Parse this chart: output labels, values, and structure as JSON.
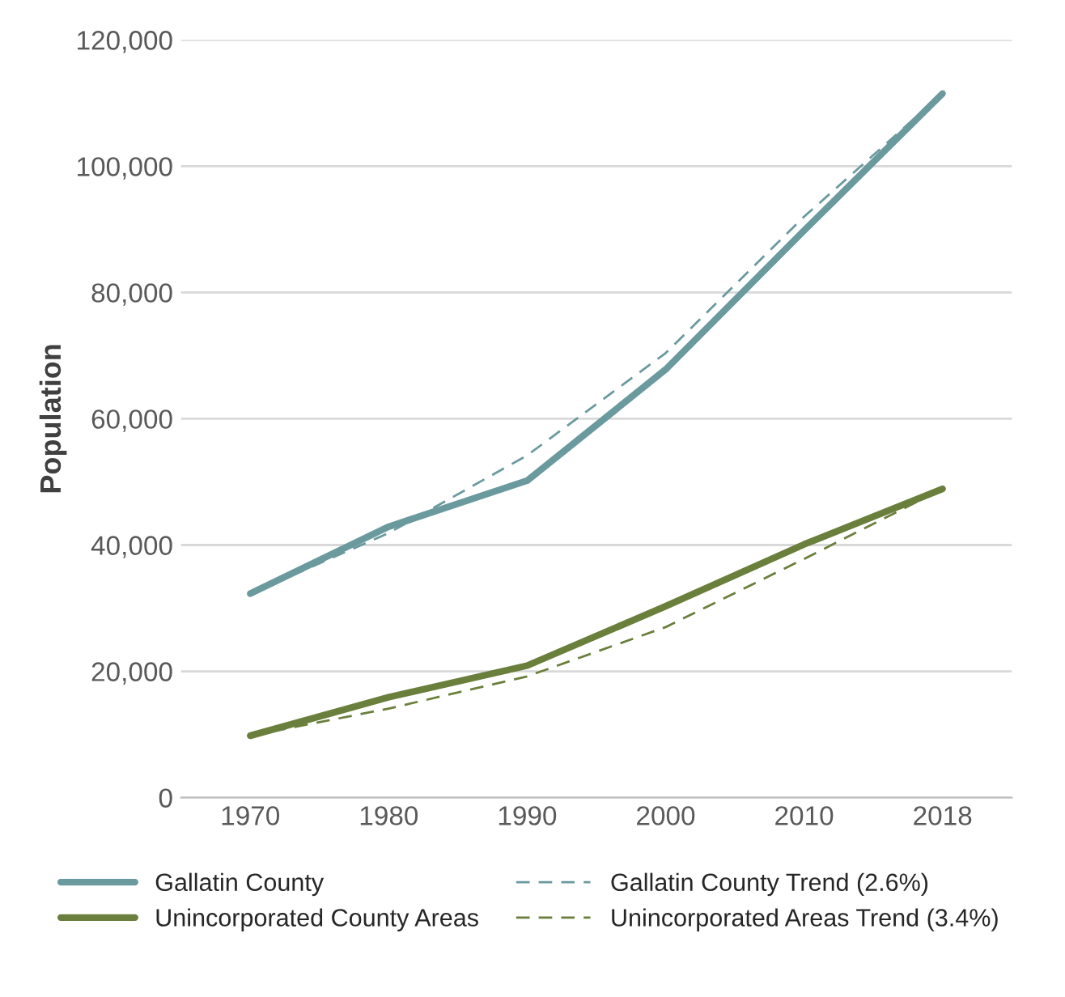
{
  "chart_data": {
    "type": "line",
    "ylabel": "Population",
    "categories": [
      "1970",
      "1980",
      "1990",
      "2000",
      "2010",
      "2018"
    ],
    "series": [
      {
        "name": "Gallatin County",
        "color": "#6b9a9e",
        "line_style": "solid",
        "values": [
          32300,
          42900,
          50200,
          67800,
          89800,
          111500
        ]
      },
      {
        "name": "Unincorporated County Areas",
        "color": "#6b7f3d",
        "line_style": "solid",
        "values": [
          9800,
          15900,
          20900,
          30300,
          40100,
          48900
        ]
      },
      {
        "name": "Gallatin County Trend (2.6%)",
        "color": "#6b9a9e",
        "line_style": "dashed",
        "values": [
          32300,
          41900,
          54200,
          70400,
          92000,
          111500
        ]
      },
      {
        "name": "Unincorporated Areas Trend (3.4%)",
        "color": "#6b7f3d",
        "line_style": "dashed",
        "values": [
          9800,
          14100,
          19200,
          27000,
          37800,
          48900
        ]
      }
    ],
    "ylim": [
      0,
      120000
    ],
    "yticks": [
      {
        "value": 0,
        "label": "0"
      },
      {
        "value": 20000,
        "label": "20,000"
      },
      {
        "value": 40000,
        "label": "40,000"
      },
      {
        "value": 60000,
        "label": "60,000"
      },
      {
        "value": 80000,
        "label": "80,000"
      },
      {
        "value": 100000,
        "label": "100,000"
      },
      {
        "value": 120000,
        "label": "120,000"
      }
    ],
    "grid": "y",
    "legend": "bottom",
    "marker": "none"
  }
}
